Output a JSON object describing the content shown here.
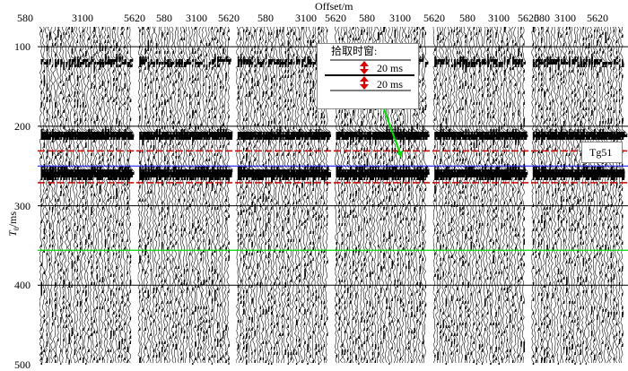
{
  "figure": {
    "x_axis_title": "Offset/m",
    "y_axis_title_main": "T",
    "y_axis_title_sub": "0",
    "y_axis_title_unit": "/ms",
    "x_tick_labels": [
      "580",
      "3100",
      "5620",
      "580",
      "3100",
      "5620",
      "580",
      "3100",
      "5620",
      "580",
      "3100",
      "5620",
      "580",
      "3100",
      "5620",
      "580",
      "3100",
      "5620"
    ],
    "y_tick_labels": [
      "100",
      "200",
      "300",
      "400",
      "500"
    ],
    "panel_count": 6,
    "pick_window": {
      "title": "拾取时窗:",
      "upper_label": "20 ms",
      "lower_label": "20 ms"
    },
    "horizon_label": "Tg51",
    "y_range_ms": [
      75,
      500
    ],
    "time_lines_ms": [
      100,
      200,
      300,
      400
    ],
    "horizons_ms": {
      "red_upper": 231,
      "blue_target": 250,
      "red_lower": 271,
      "green_reference": 356
    },
    "colors": {
      "red_window_lines": "#cc0000",
      "blue_horizon": "#0000ee",
      "green_horizon": "#00dd00",
      "pick_arrows": "#dd0000",
      "seismic_traces": "#000000",
      "background": "#ffffff"
    }
  },
  "chart_data": {
    "type": "heatmap",
    "title": "",
    "xlabel": "Offset/m",
    "ylabel": "T0/ms",
    "panel_offset_ticks": [
      580,
      3100,
      5620
    ],
    "panels": 6,
    "ylim": [
      75,
      500
    ],
    "strong_events_ms": [
      118,
      210,
      258
    ],
    "horizons_ms": [
      231,
      250,
      271,
      356
    ],
    "pick_window_ms": 20,
    "horizon_name": "Tg51"
  }
}
